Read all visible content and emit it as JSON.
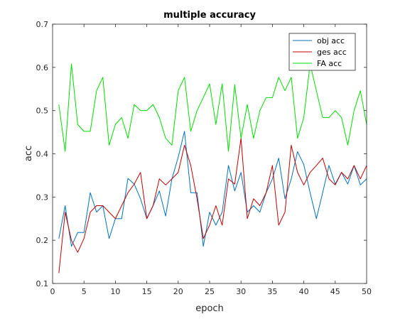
{
  "chart_data": {
    "type": "line",
    "title": "multiple accuracy",
    "xlabel": "epoch",
    "ylabel": "acc",
    "xlim": [
      0,
      50
    ],
    "ylim": [
      0.1,
      0.7
    ],
    "xticks": [
      0,
      5,
      10,
      15,
      20,
      25,
      30,
      35,
      40,
      45,
      50
    ],
    "yticks": [
      0.1,
      0.2,
      0.3,
      0.4,
      0.5,
      0.6,
      0.7
    ],
    "xtick_labels": [
      "0",
      "5",
      "10",
      "15",
      "20",
      "25",
      "30",
      "35",
      "40",
      "45",
      "50"
    ],
    "ytick_labels": [
      "0.1",
      "0.2",
      "0.3",
      "0.4",
      "0.5",
      "0.6",
      "0.7"
    ],
    "grid": false,
    "legend_position": "top-right",
    "x": [
      1,
      2,
      3,
      4,
      5,
      6,
      7,
      8,
      9,
      10,
      11,
      12,
      13,
      14,
      15,
      16,
      17,
      18,
      19,
      20,
      21,
      22,
      23,
      24,
      25,
      26,
      27,
      28,
      29,
      30,
      31,
      32,
      33,
      34,
      35,
      36,
      37,
      38,
      39,
      40,
      41,
      42,
      43,
      44,
      45,
      46,
      47,
      48,
      49,
      50
    ],
    "series": [
      {
        "name": "obj acc",
        "color": "#0072BD",
        "values": [
          0.204,
          0.28,
          0.186,
          0.218,
          0.218,
          0.31,
          0.265,
          0.28,
          0.204,
          0.25,
          0.25,
          0.343,
          0.33,
          0.296,
          0.25,
          0.28,
          0.314,
          0.256,
          0.342,
          0.392,
          0.452,
          0.31,
          0.31,
          0.186,
          0.265,
          0.235,
          0.265,
          0.373,
          0.314,
          0.357,
          0.265,
          0.28,
          0.265,
          0.31,
          0.342,
          0.39,
          0.296,
          0.342,
          0.405,
          0.375,
          0.31,
          0.25,
          0.31,
          0.373,
          0.33,
          0.357,
          0.33,
          0.373,
          0.328,
          0.342
        ]
      },
      {
        "name": "ges acc",
        "color": "#C00000",
        "values": [
          0.124,
          0.265,
          0.2,
          0.172,
          0.204,
          0.265,
          0.28,
          0.28,
          0.265,
          0.25,
          0.28,
          0.31,
          0.33,
          0.357,
          0.25,
          0.28,
          0.342,
          0.328,
          0.342,
          0.357,
          0.42,
          0.373,
          0.296,
          0.204,
          0.235,
          0.28,
          0.235,
          0.342,
          0.33,
          0.436,
          0.25,
          0.296,
          0.28,
          0.31,
          0.373,
          0.235,
          0.265,
          0.42,
          0.357,
          0.328,
          0.357,
          0.373,
          0.39,
          0.342,
          0.328,
          0.357,
          0.342,
          0.373,
          0.342,
          0.373
        ]
      },
      {
        "name": "FA acc",
        "color": "#00DD00",
        "values": [
          0.514,
          0.406,
          0.608,
          0.468,
          0.452,
          0.452,
          0.546,
          0.577,
          0.42,
          0.468,
          0.484,
          0.436,
          0.514,
          0.5,
          0.5,
          0.514,
          0.484,
          0.436,
          0.42,
          0.546,
          0.577,
          0.452,
          0.5,
          0.53,
          0.562,
          0.468,
          0.562,
          0.406,
          0.56,
          0.436,
          0.514,
          0.436,
          0.5,
          0.53,
          0.53,
          0.577,
          0.546,
          0.577,
          0.436,
          0.484,
          0.608,
          0.546,
          0.484,
          0.484,
          0.5,
          0.484,
          0.42,
          0.5,
          0.546,
          0.468
        ]
      }
    ]
  }
}
